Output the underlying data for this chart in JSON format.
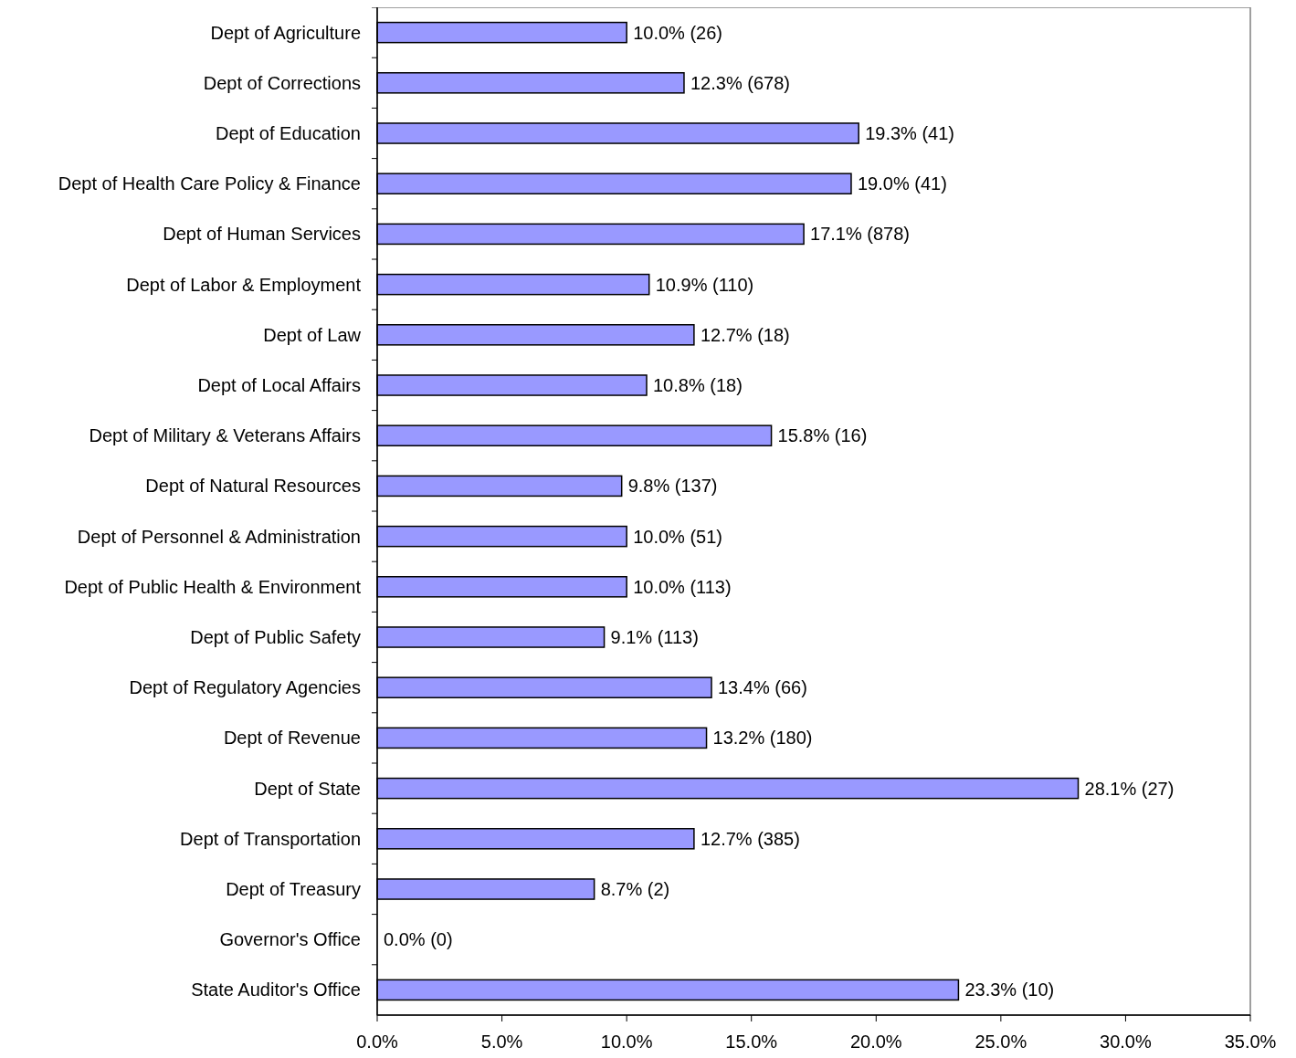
{
  "chart_data": {
    "type": "bar",
    "orientation": "horizontal",
    "categories": [
      "Dept of Agriculture",
      "Dept of Corrections",
      "Dept of Education",
      "Dept of Health Care Policy & Finance",
      "Dept of Human Services",
      "Dept of Labor & Employment",
      "Dept of Law",
      "Dept of Local Affairs",
      "Dept of Military & Veterans Affairs",
      "Dept of Natural Resources",
      "Dept of Personnel & Administration",
      "Dept of Public Health & Environment",
      "Dept of Public Safety",
      "Dept of Regulatory Agencies",
      "Dept of Revenue",
      "Dept of State",
      "Dept of Transportation",
      "Dept of Treasury",
      "Governor's Office",
      "State Auditor's Office"
    ],
    "values": [
      10.0,
      12.3,
      19.3,
      19.0,
      17.1,
      10.9,
      12.7,
      10.8,
      15.8,
      9.8,
      10.0,
      10.0,
      9.1,
      13.4,
      13.2,
      28.1,
      12.7,
      8.7,
      0.0,
      23.3
    ],
    "value_labels": [
      "10.0% (26)",
      "12.3% (678)",
      "19.3% (41)",
      "19.0% (41)",
      "17.1% (878)",
      "10.9% (110)",
      "12.7% (18)",
      "10.8% (18)",
      "15.8% (16)",
      "9.8% (137)",
      "10.0% (51)",
      "10.0% (113)",
      "9.1% (113)",
      "13.4% (66)",
      "13.2% (180)",
      "28.1% (27)",
      "12.7% (385)",
      "8.7% (2)",
      "0.0% (0)",
      "23.3% (10)"
    ],
    "color": "#9999ff",
    "xlim": [
      0,
      35
    ],
    "xticks": [
      {
        "value": 0,
        "label": "0.0%"
      },
      {
        "value": 5,
        "label": "5.0%"
      },
      {
        "value": 10,
        "label": "10.0%"
      },
      {
        "value": 15,
        "label": "15.0%"
      },
      {
        "value": 20,
        "label": "20.0%"
      },
      {
        "value": 25,
        "label": "25.0%"
      },
      {
        "value": 30,
        "label": "30.0%"
      },
      {
        "value": 35,
        "label": "35.0%"
      }
    ],
    "grid": false
  }
}
